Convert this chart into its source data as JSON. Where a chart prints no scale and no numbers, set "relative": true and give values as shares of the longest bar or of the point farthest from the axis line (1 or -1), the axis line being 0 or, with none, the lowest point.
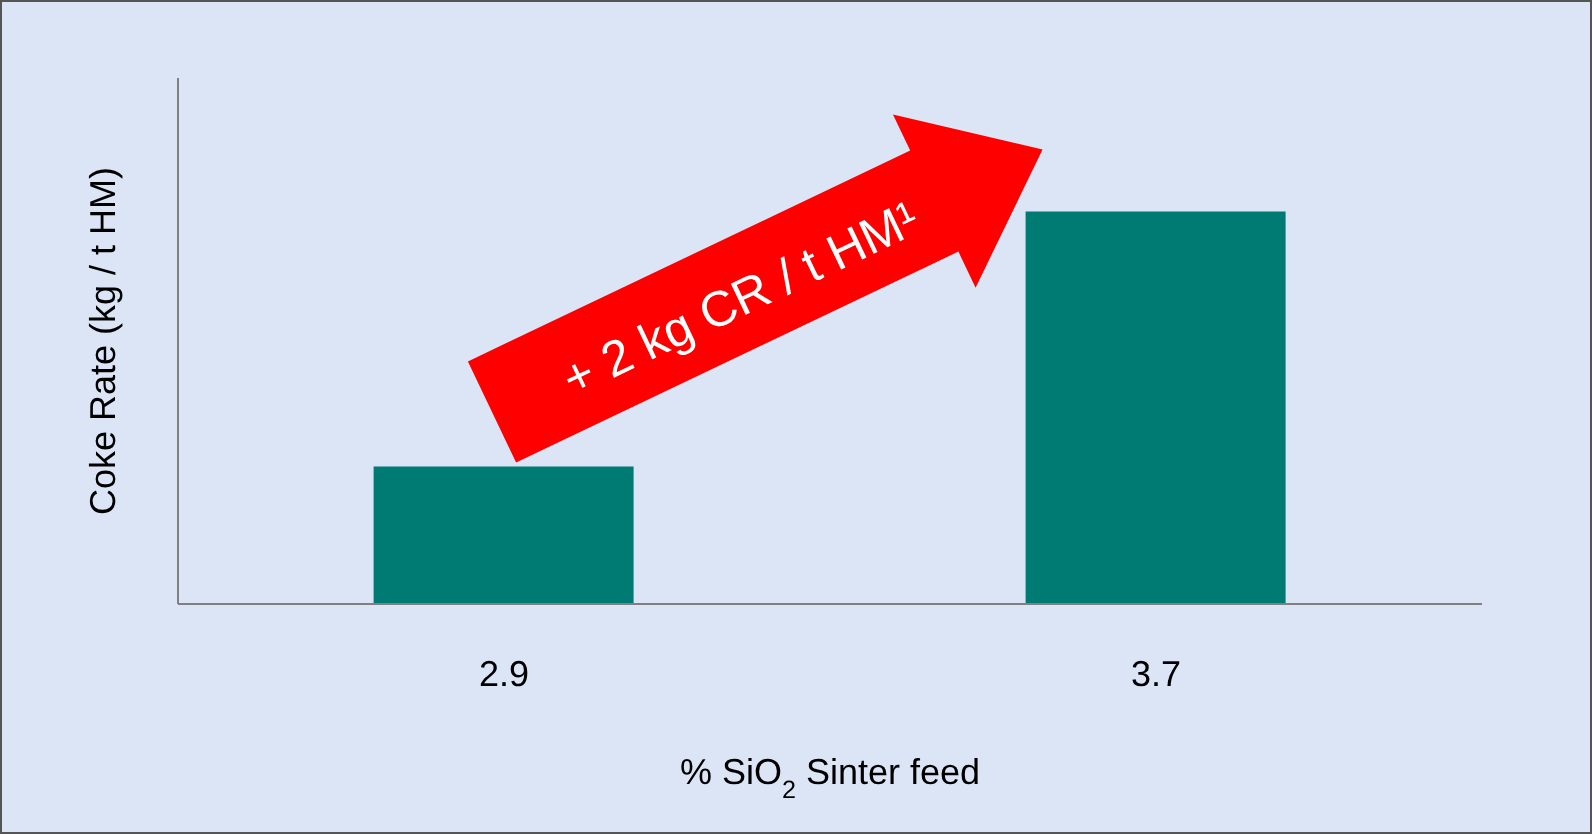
{
  "chart_data": {
    "type": "bar",
    "relative": true,
    "categories": [
      "2.9",
      "3.7"
    ],
    "values": [
      0.35,
      1
    ],
    "color": "#007b74",
    "xlabel": "% SiO$_{2}$ Sinter feed",
    "ylabel": "Coke Rate (kg / t HM)",
    "annotations": [
      "+ 2  kg CR / t HM¹"
    ]
  }
}
